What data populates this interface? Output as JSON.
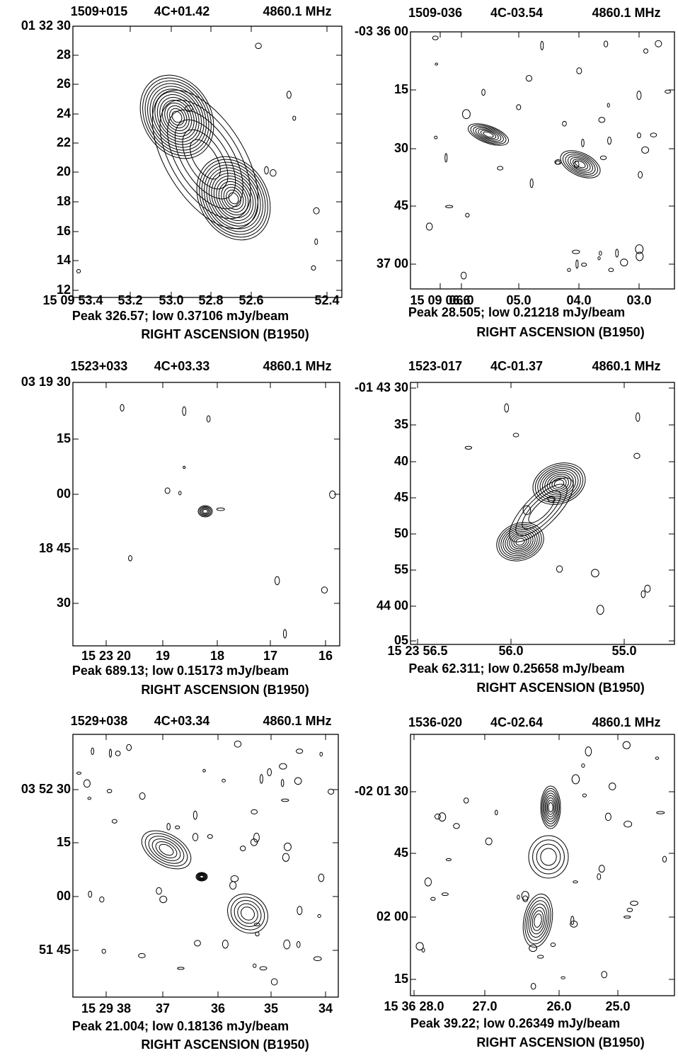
{
  "panels": [
    {
      "source": "1509+015",
      "name": "4C+01.42",
      "frequency": "4860.1 MHz",
      "y_labels": [
        "01 32 30",
        "28",
        "26",
        "24",
        "22",
        "20",
        "18",
        "16",
        "14",
        "12"
      ],
      "x_labels": [
        "15 09 53.4",
        "53.2",
        "53.0",
        "52.8",
        "52.6",
        "52.4"
      ],
      "peak": "Peak 326.57; low 0.37106 mJy/beam",
      "x_axis_label": "RIGHT ASCENSION (B1950)"
    },
    {
      "source": "1509-036",
      "name": "4C-03.54",
      "frequency": "4860.1 MHz",
      "y_labels": [
        "-03 36 00",
        "15",
        "30",
        "45",
        "37 00"
      ],
      "x_labels": [
        "15 09 06.6",
        "06.0",
        "05.0",
        "04.0",
        "03.0"
      ],
      "peak": "Peak 28.505; low 0.21218 mJy/beam",
      "x_axis_label": "RIGHT ASCENSION (B1950)"
    },
    {
      "source": "1523+033",
      "name": "4C+03.33",
      "frequency": "4860.1 MHz",
      "y_labels": [
        "03 19 30",
        "15",
        "00",
        "18 45",
        "30"
      ],
      "x_labels": [
        "15 23 20",
        "19",
        "18",
        "17",
        "16"
      ],
      "peak": "Peak 689.13; low 0.15173 mJy/beam",
      "x_axis_label": "RIGHT ASCENSION (B1950)"
    },
    {
      "source": "1523-017",
      "name": "4C-01.37",
      "frequency": "4860.1 MHz",
      "y_labels": [
        "-01 43 30",
        "35",
        "40",
        "45",
        "50",
        "55",
        "44 00",
        "05"
      ],
      "x_labels": [
        "15 23 56.5",
        "56.0",
        "55.0"
      ],
      "peak": "Peak 62.311; low 0.25658 mJy/beam",
      "x_axis_label": "RIGHT ASCENSION (B1950)"
    },
    {
      "source": "1529+038",
      "name": "4C+03.34",
      "frequency": "4860.1 MHz",
      "y_labels": [
        "03 52 30",
        "15",
        "00",
        "51 45"
      ],
      "x_labels": [
        "15 29 38",
        "37",
        "36",
        "35",
        "34"
      ],
      "peak": "Peak 21.004; low 0.18136 mJy/beam",
      "x_axis_label": "RIGHT ASCENSION (B1950)"
    },
    {
      "source": "1536-020",
      "name": "4C-02.64",
      "frequency": "4860.1 MHz",
      "y_labels": [
        "-02 01 30",
        "45",
        "02 00",
        "15"
      ],
      "x_labels": [
        "15 36 28.0",
        "27.0",
        "26.0",
        "25.0"
      ],
      "peak": "Peak 39.22; low 0.26349 mJy/beam",
      "x_axis_label": "RIGHT ASCENSION (B1950)"
    }
  ]
}
